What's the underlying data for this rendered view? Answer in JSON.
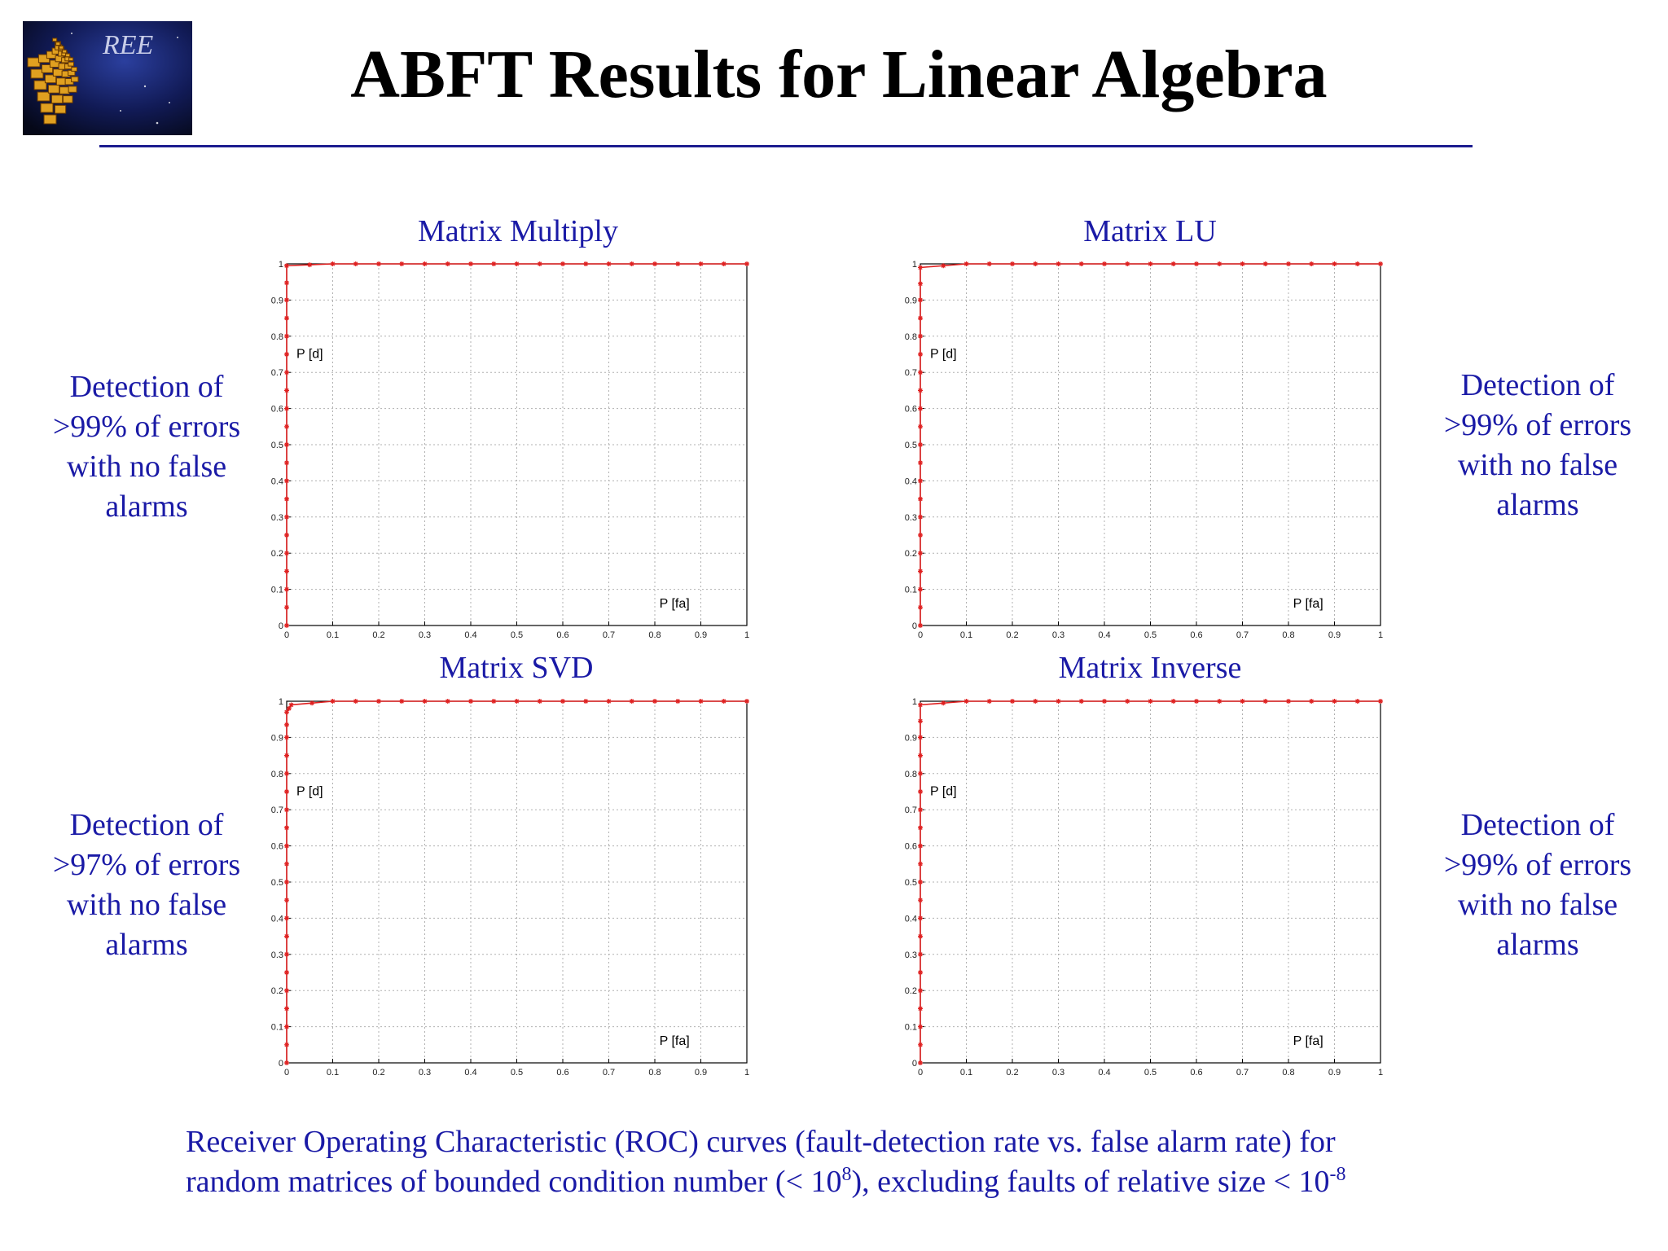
{
  "slide": {
    "logo_text": "REE",
    "title": "ABFT Results for Linear Algebra",
    "captions": [
      {
        "lines": [
          "Detection of",
          ">99% of errors",
          "with no false",
          "alarms"
        ]
      },
      {
        "lines": [
          "Detection of",
          ">99% of errors",
          "with no false",
          "alarms"
        ]
      },
      {
        "lines": [
          "Detection of",
          ">97% of errors",
          "with no false",
          "alarms"
        ]
      },
      {
        "lines": [
          "Detection of",
          ">99% of errors",
          "with no false",
          "alarms"
        ]
      }
    ],
    "footer": {
      "line1": "Receiver Operating Characteristic (ROC) curves (fault-detection rate vs. false alarm rate) for",
      "line2_a": "random matrices of bounded condition number (< 10",
      "line2_sup1": "8",
      "line2_b": "), excluding faults of relative size < 10",
      "line2_sup2": "-8"
    }
  },
  "colors": {
    "title_text": "#000000",
    "caption_text": "#1a1aa6",
    "rule": "#1c1c8f",
    "curve": "#e02020",
    "grid": "#b0b0b0"
  },
  "chart_data": [
    {
      "type": "line",
      "title": "Matrix Multiply",
      "xlabel": "P [fa]",
      "ylabel": "P [d]",
      "xlim": [
        0,
        1
      ],
      "ylim": [
        0,
        1
      ],
      "grid": true,
      "xticks": [
        "0",
        "0.1",
        "0.2",
        "0.3",
        "0.4",
        "0.5",
        "0.6",
        "0.7",
        "0.8",
        "0.9",
        "1"
      ],
      "yticks": [
        "0",
        "0.1",
        "0.2",
        "0.3",
        "0.4",
        "0.5",
        "0.6",
        "0.7",
        "0.8",
        "0.9",
        "1"
      ],
      "series": [
        {
          "points": [
            [
              0,
              0
            ],
            [
              0,
              0.1
            ],
            [
              0,
              0.2
            ],
            [
              0,
              0.3
            ],
            [
              0,
              0.4
            ],
            [
              0,
              0.5
            ],
            [
              0,
              0.6
            ],
            [
              0,
              0.7
            ],
            [
              0,
              0.8
            ],
            [
              0,
              0.9
            ],
            [
              0,
              0.995
            ],
            [
              0.1,
              1
            ],
            [
              0.2,
              1
            ],
            [
              0.3,
              1
            ],
            [
              0.4,
              1
            ],
            [
              0.5,
              1
            ],
            [
              0.6,
              1
            ],
            [
              0.7,
              1
            ],
            [
              0.8,
              1
            ],
            [
              0.9,
              1
            ],
            [
              1,
              1
            ]
          ]
        }
      ]
    },
    {
      "type": "line",
      "title": "Matrix LU",
      "xlabel": "P [fa]",
      "ylabel": "P [d]",
      "xlim": [
        0,
        1
      ],
      "ylim": [
        0,
        1
      ],
      "grid": true,
      "xticks": [
        "0",
        "0.1",
        "0.2",
        "0.3",
        "0.4",
        "0.5",
        "0.6",
        "0.7",
        "0.8",
        "0.9",
        "1"
      ],
      "yticks": [
        "0",
        "0.1",
        "0.2",
        "0.3",
        "0.4",
        "0.5",
        "0.6",
        "0.7",
        "0.8",
        "0.9",
        "1"
      ],
      "series": [
        {
          "points": [
            [
              0,
              0
            ],
            [
              0,
              0.1
            ],
            [
              0,
              0.2
            ],
            [
              0,
              0.3
            ],
            [
              0,
              0.4
            ],
            [
              0,
              0.5
            ],
            [
              0,
              0.6
            ],
            [
              0,
              0.7
            ],
            [
              0,
              0.8
            ],
            [
              0,
              0.9
            ],
            [
              0,
              0.99
            ],
            [
              0.1,
              1
            ],
            [
              0.2,
              1
            ],
            [
              0.3,
              1
            ],
            [
              0.4,
              1
            ],
            [
              0.5,
              1
            ],
            [
              0.6,
              1
            ],
            [
              0.7,
              1
            ],
            [
              0.8,
              1
            ],
            [
              0.9,
              1
            ],
            [
              1,
              1
            ]
          ]
        }
      ]
    },
    {
      "type": "line",
      "title": "Matrix SVD",
      "xlabel": "P [fa]",
      "ylabel": "P [d]",
      "xlim": [
        0,
        1
      ],
      "ylim": [
        0,
        1
      ],
      "grid": true,
      "xticks": [
        "0",
        "0.1",
        "0.2",
        "0.3",
        "0.4",
        "0.5",
        "0.6",
        "0.7",
        "0.8",
        "0.9",
        "1"
      ],
      "yticks": [
        "0",
        "0.1",
        "0.2",
        "0.3",
        "0.4",
        "0.5",
        "0.6",
        "0.7",
        "0.8",
        "0.9",
        "1"
      ],
      "series": [
        {
          "points": [
            [
              0,
              0
            ],
            [
              0,
              0.1
            ],
            [
              0,
              0.2
            ],
            [
              0,
              0.3
            ],
            [
              0,
              0.4
            ],
            [
              0,
              0.5
            ],
            [
              0,
              0.6
            ],
            [
              0,
              0.7
            ],
            [
              0,
              0.8
            ],
            [
              0,
              0.9
            ],
            [
              0,
              0.97
            ],
            [
              0.01,
              0.99
            ],
            [
              0.1,
              1
            ],
            [
              0.2,
              1
            ],
            [
              0.3,
              1
            ],
            [
              0.4,
              1
            ],
            [
              0.5,
              1
            ],
            [
              0.6,
              1
            ],
            [
              0.7,
              1
            ],
            [
              0.8,
              1
            ],
            [
              0.9,
              1
            ],
            [
              1,
              1
            ]
          ]
        }
      ]
    },
    {
      "type": "line",
      "title": "Matrix Inverse",
      "xlabel": "P [fa]",
      "ylabel": "P [d]",
      "xlim": [
        0,
        1
      ],
      "ylim": [
        0,
        1
      ],
      "grid": true,
      "xticks": [
        "0",
        "0.1",
        "0.2",
        "0.3",
        "0.4",
        "0.5",
        "0.6",
        "0.7",
        "0.8",
        "0.9",
        "1"
      ],
      "yticks": [
        "0",
        "0.1",
        "0.2",
        "0.3",
        "0.4",
        "0.5",
        "0.6",
        "0.7",
        "0.8",
        "0.9",
        "1"
      ],
      "series": [
        {
          "points": [
            [
              0,
              0
            ],
            [
              0,
              0.1
            ],
            [
              0,
              0.2
            ],
            [
              0,
              0.3
            ],
            [
              0,
              0.4
            ],
            [
              0,
              0.5
            ],
            [
              0,
              0.6
            ],
            [
              0,
              0.7
            ],
            [
              0,
              0.8
            ],
            [
              0,
              0.9
            ],
            [
              0,
              0.99
            ],
            [
              0.1,
              1
            ],
            [
              0.2,
              1
            ],
            [
              0.3,
              1
            ],
            [
              0.4,
              1
            ],
            [
              0.5,
              1
            ],
            [
              0.6,
              1
            ],
            [
              0.7,
              1
            ],
            [
              0.8,
              1
            ],
            [
              0.9,
              1
            ],
            [
              1,
              1
            ]
          ]
        }
      ]
    }
  ]
}
